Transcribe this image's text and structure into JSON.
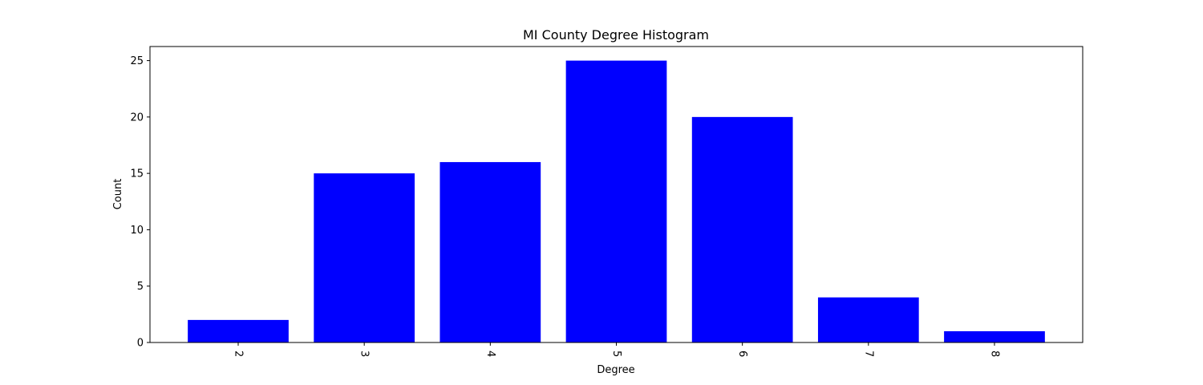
{
  "chart_data": {
    "type": "bar",
    "title": "MI County Degree Histogram",
    "xlabel": "Degree",
    "ylabel": "Count",
    "categories": [
      "2",
      "3",
      "4",
      "5",
      "6",
      "7",
      "8"
    ],
    "values": [
      2,
      15,
      16,
      25,
      20,
      4,
      1
    ],
    "ylim": [
      0,
      26.25
    ],
    "yticks": [
      "0",
      "5",
      "10",
      "15",
      "20",
      "25"
    ],
    "xtick_rotation_degrees": -90,
    "bar_color": "#0000ff",
    "grid": false,
    "legend": "none"
  }
}
